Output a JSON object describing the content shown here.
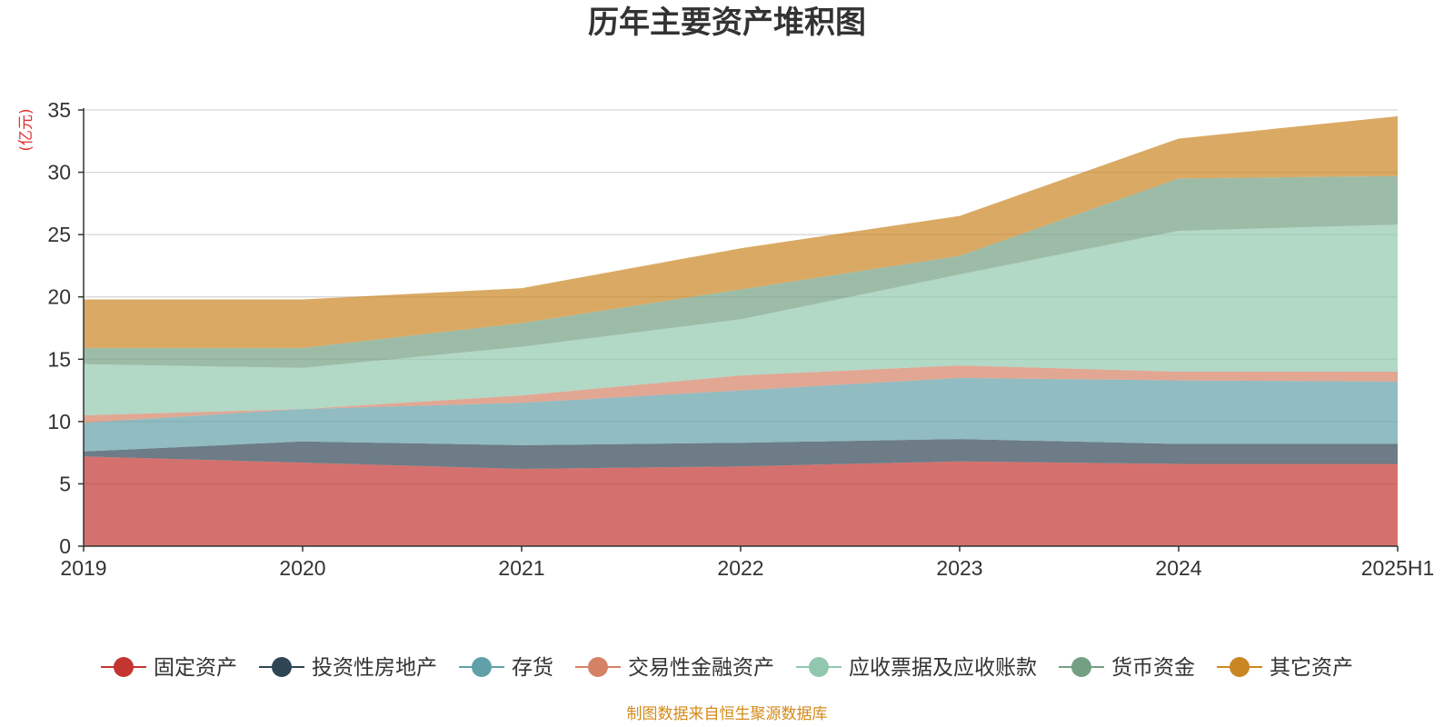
{
  "chart_data": {
    "type": "area",
    "stacked": true,
    "title": "历年主要资产堆积图",
    "ylabel": "(亿元)",
    "xlabel": "",
    "ylim": [
      0,
      35
    ],
    "yticks": [
      0,
      5,
      10,
      15,
      20,
      25,
      30,
      35
    ],
    "categories": [
      "2019",
      "2020",
      "2021",
      "2022",
      "2023",
      "2024",
      "2025H1"
    ],
    "grid": true,
    "legend_position": "bottom",
    "series": [
      {
        "name": "固定资产",
        "color": "#c23531",
        "values": [
          7.2,
          6.7,
          6.2,
          6.4,
          6.8,
          6.6,
          6.6
        ]
      },
      {
        "name": "投资性房地产",
        "color": "#2f4554",
        "values": [
          0.4,
          1.7,
          1.9,
          1.9,
          1.8,
          1.6,
          1.6
        ]
      },
      {
        "name": "存货",
        "color": "#61a0a8",
        "values": [
          2.3,
          2.6,
          3.4,
          4.2,
          4.9,
          5.1,
          5.0
        ]
      },
      {
        "name": "交易性金融资产",
        "color": "#d48265",
        "values": [
          0.6,
          0.0,
          0.6,
          1.2,
          1.0,
          0.7,
          0.8
        ]
      },
      {
        "name": "应收票据及应收账款",
        "color": "#91c7ae",
        "values": [
          4.1,
          3.3,
          3.9,
          4.5,
          7.3,
          11.3,
          11.8
        ]
      },
      {
        "name": "货币资金",
        "color": "#749f83",
        "values": [
          1.3,
          1.6,
          1.9,
          2.4,
          1.5,
          4.2,
          3.9
        ]
      },
      {
        "name": "其它资产",
        "color": "#ca8622",
        "values": [
          3.9,
          3.9,
          2.8,
          3.3,
          3.2,
          3.2,
          4.8
        ]
      }
    ]
  },
  "footer": "制图数据来自恒生聚源数据库"
}
